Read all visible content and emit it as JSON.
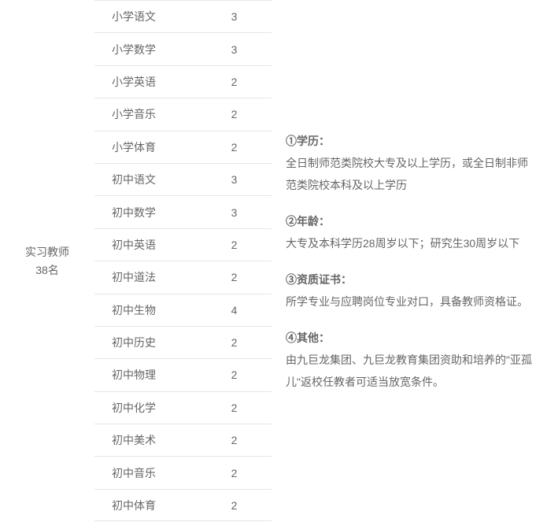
{
  "header": {
    "line1": "实习教师",
    "line2": "38名"
  },
  "subjects": [
    {
      "name": "小学语文",
      "count": "3"
    },
    {
      "name": "小学数学",
      "count": "3"
    },
    {
      "name": "小学英语",
      "count": "2"
    },
    {
      "name": "小学音乐",
      "count": "2"
    },
    {
      "name": "小学体育",
      "count": "2"
    },
    {
      "name": "初中语文",
      "count": "3"
    },
    {
      "name": "初中数学",
      "count": "3"
    },
    {
      "name": "初中英语",
      "count": "2"
    },
    {
      "name": "初中道法",
      "count": "2"
    },
    {
      "name": "初中生物",
      "count": "4"
    },
    {
      "name": "初中历史",
      "count": "2"
    },
    {
      "name": "初中物理",
      "count": "2"
    },
    {
      "name": "初中化学",
      "count": "2"
    },
    {
      "name": "初中美术",
      "count": "2"
    },
    {
      "name": "初中音乐",
      "count": "2"
    },
    {
      "name": "初中体育",
      "count": "2"
    }
  ],
  "requirements": [
    {
      "title": "①学历：",
      "body": "全日制师范类院校大专及以上学历，或全日制非师范类院校本科及以上学历"
    },
    {
      "title": "②年龄：",
      "body": "大专及本科学历28周岁以下；研究生30周岁以下"
    },
    {
      "title": "③资质证书：",
      "body": "所学专业与应聘岗位专业对口，具备教师资格证。"
    },
    {
      "title": "④其他：",
      "body": "由九巨龙集团、九巨龙教育集团资助和培养的\"亚孤儿\"返校任教者可适当放宽条件。"
    }
  ],
  "colors": {
    "text": "#666666",
    "border": "#e6e6e6",
    "bg": "#ffffff"
  },
  "typography": {
    "font_family": "Microsoft YaHei",
    "font_size": 14,
    "line_height_requirements": 2,
    "bold_titles": true
  }
}
